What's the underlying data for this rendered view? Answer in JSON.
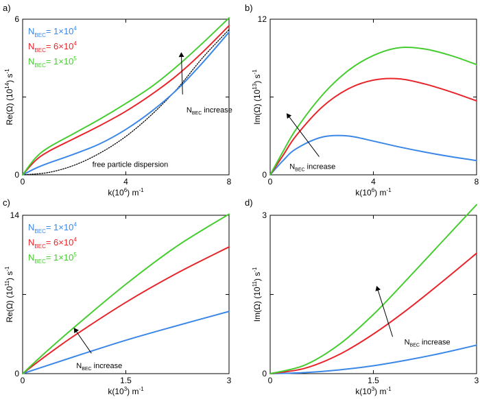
{
  "colors": {
    "blue": "#3a87e8",
    "red": "#e8242a",
    "green": "#45cc2e",
    "black": "#000000"
  },
  "chart_data": [
    {
      "id": "a",
      "panel_label": "a)",
      "type": "line",
      "ylabel_main": "Re(Ω) (10",
      "ylabel_sup": "14",
      "ylabel_tail": ") s",
      "ylabel_tail_sup": "-1",
      "xlabel_main": "k(10",
      "xlabel_sup": "6",
      "xlabel_tail": ") m",
      "xlabel_tail_sup": "-1",
      "xlim": [
        0,
        8
      ],
      "ylim": [
        0,
        6
      ],
      "xticks": [
        0,
        4,
        8
      ],
      "xtick_labels": [
        "0",
        "4",
        "8"
      ],
      "yticks": [
        0,
        3,
        6
      ],
      "ytick_labels": [
        "0",
        "",
        "6"
      ],
      "legend": [
        {
          "sym": "N",
          "sub": "BEC",
          "rest": "= 1×10",
          "sup": "4",
          "color": "blue"
        },
        {
          "sym": "N",
          "sub": "BEC",
          "rest": "= 6×10",
          "sup": "4",
          "color": "red"
        },
        {
          "sym": "N",
          "sub": "BEC",
          "rest": "= 1×10",
          "sup": "5",
          "color": "green"
        }
      ],
      "annotations": [
        {
          "sym": "N",
          "sub": "BEC",
          "rest": " increase",
          "ax": 6.2,
          "ay": 3.1,
          "hx": 6.15,
          "hy": 4.7,
          "tx": 6.35,
          "ty": 2.4
        },
        {
          "plain": "free particle dispersion",
          "tx": 2.7,
          "ty": 0.3
        }
      ],
      "series": [
        {
          "name": "free particle",
          "color": "black",
          "dashed": true,
          "x": [
            0,
            1,
            2,
            3,
            4,
            5,
            6,
            7,
            8
          ],
          "y": [
            0,
            0.09,
            0.37,
            0.84,
            1.48,
            2.32,
            3.33,
            4.54,
            5.6
          ]
        },
        {
          "name": "N_BEC=1x10^4",
          "color": "blue",
          "x": [
            0,
            0.5,
            1,
            2,
            3,
            4,
            5,
            6,
            7,
            8
          ],
          "y": [
            0,
            0.25,
            0.45,
            0.8,
            1.2,
            1.75,
            2.45,
            3.3,
            4.35,
            5.5
          ]
        },
        {
          "name": "N_BEC=6x10^4",
          "color": "red",
          "x": [
            0,
            0.5,
            1,
            2,
            3,
            4,
            5,
            6,
            7,
            8
          ],
          "y": [
            0,
            0.55,
            0.9,
            1.4,
            1.9,
            2.45,
            3.1,
            3.85,
            4.75,
            5.75
          ]
        },
        {
          "name": "N_BEC=1x10^5",
          "color": "green",
          "x": [
            0,
            0.5,
            1,
            2,
            3,
            4,
            5,
            6,
            7,
            8
          ],
          "y": [
            0,
            0.65,
            1.05,
            1.6,
            2.15,
            2.75,
            3.4,
            4.2,
            5.1,
            6.05
          ]
        }
      ]
    },
    {
      "id": "b",
      "panel_label": "b)",
      "type": "line",
      "ylabel_main": "Im(Ω) (10",
      "ylabel_sup": "13",
      "ylabel_tail": ") s",
      "ylabel_tail_sup": "-1",
      "xlabel_main": "k(10",
      "xlabel_sup": "6",
      "xlabel_tail": ") m",
      "xlabel_tail_sup": "-1",
      "xlim": [
        0,
        8
      ],
      "ylim": [
        0,
        12
      ],
      "xticks": [
        0,
        4,
        8
      ],
      "xtick_labels": [
        "0",
        "4",
        "8"
      ],
      "yticks": [
        0,
        6,
        12
      ],
      "ytick_labels": [
        "0",
        "",
        "12"
      ],
      "legend": [],
      "annotations": [
        {
          "sym": "N",
          "sub": "BEC",
          "rest": " increase",
          "ax": 1.9,
          "ay": 1.4,
          "hx": 0.65,
          "hy": 4.7,
          "tx": 0.75,
          "ty": 0.45
        }
      ],
      "series": [
        {
          "name": "N_BEC=1x10^4",
          "color": "blue",
          "x": [
            0,
            0.5,
            1,
            2,
            3,
            4,
            5,
            6,
            7,
            8
          ],
          "y": [
            0,
            1.1,
            2.0,
            2.9,
            3.0,
            2.6,
            2.15,
            1.75,
            1.4,
            1.1
          ]
        },
        {
          "name": "N_BEC=6x10^4",
          "color": "red",
          "x": [
            0,
            0.5,
            1,
            2,
            3,
            4,
            5,
            6,
            7,
            8
          ],
          "y": [
            0,
            1.5,
            3.0,
            5.2,
            6.6,
            7.3,
            7.4,
            7.0,
            6.4,
            5.7
          ]
        },
        {
          "name": "N_BEC=1x10^5",
          "color": "green",
          "x": [
            0,
            0.5,
            1,
            2,
            3,
            4,
            5,
            6,
            7,
            8
          ],
          "y": [
            0,
            1.8,
            3.5,
            6.1,
            8.0,
            9.2,
            9.8,
            9.7,
            9.2,
            8.5
          ]
        }
      ]
    },
    {
      "id": "c",
      "panel_label": "c)",
      "type": "line",
      "ylabel_main": "Re(Ω) (10",
      "ylabel_sup": "11",
      "ylabel_tail": ") s",
      "ylabel_tail_sup": "-1",
      "xlabel_main": "k(10",
      "xlabel_sup": "3",
      "xlabel_tail": ") m",
      "xlabel_tail_sup": "-1",
      "xlim": [
        0,
        3
      ],
      "ylim": [
        0,
        14
      ],
      "xticks": [
        0,
        1.5,
        3
      ],
      "xtick_labels": [
        "0",
        "1.5",
        "3"
      ],
      "yticks": [
        0,
        7,
        14
      ],
      "ytick_labels": [
        "0",
        "",
        "14"
      ],
      "legend": [
        {
          "sym": "N",
          "sub": "BEC",
          "rest": "= 1×10",
          "sup": "4",
          "color": "blue"
        },
        {
          "sym": "N",
          "sub": "BEC",
          "rest": "= 6×10",
          "sup": "4",
          "color": "red"
        },
        {
          "sym": "N",
          "sub": "BEC",
          "rest": "= 1×10",
          "sup": "5",
          "color": "green"
        }
      ],
      "annotations": [
        {
          "sym": "N",
          "sub": "BEC",
          "rest": " increase",
          "ax": 1.0,
          "ay": 1.8,
          "hx": 0.75,
          "hy": 4.0,
          "tx": 0.78,
          "ty": 0.5
        }
      ],
      "series": [
        {
          "name": "N_BEC=1x10^4",
          "color": "blue",
          "x": [
            0,
            0.3,
            0.75,
            1.5,
            2.25,
            3
          ],
          "y": [
            0,
            0.6,
            1.5,
            2.95,
            4.25,
            5.5
          ]
        },
        {
          "name": "N_BEC=6x10^4",
          "color": "red",
          "x": [
            0,
            0.3,
            0.75,
            1.5,
            2.25,
            3
          ],
          "y": [
            0,
            1.4,
            3.35,
            6.3,
            8.9,
            11.2
          ]
        },
        {
          "name": "N_BEC=1x10^5",
          "color": "green",
          "x": [
            0,
            0.3,
            0.75,
            1.5,
            2.25,
            3
          ],
          "y": [
            0,
            1.7,
            4.1,
            7.9,
            11.3,
            14.1
          ]
        }
      ]
    },
    {
      "id": "d",
      "panel_label": "d)",
      "type": "line",
      "ylabel_main": "Im(Ω) (10",
      "ylabel_sup": "11",
      "ylabel_tail": ") s",
      "ylabel_tail_sup": "-1",
      "xlabel_main": "k(10",
      "xlabel_sup": "3",
      "xlabel_tail": ") m",
      "xlabel_tail_sup": "-1",
      "xlim": [
        0,
        3
      ],
      "ylim": [
        0,
        3
      ],
      "xticks": [
        0,
        1.5,
        3
      ],
      "xtick_labels": [
        "0",
        "1.5",
        "3"
      ],
      "yticks": [
        0,
        1.5,
        3
      ],
      "ytick_labels": [
        "0",
        "",
        "3"
      ],
      "legend": [],
      "annotations": [
        {
          "sym": "N",
          "sub": "BEC",
          "rest": " increase",
          "ax": 1.78,
          "ay": 0.7,
          "hx": 1.55,
          "hy": 1.65,
          "tx": 1.95,
          "ty": 0.55
        }
      ],
      "series": [
        {
          "name": "N_BEC=1x10^4",
          "color": "blue",
          "x": [
            0,
            0.5,
            1,
            1.5,
            2,
            2.5,
            3
          ],
          "y": [
            0,
            0.02,
            0.07,
            0.15,
            0.26,
            0.39,
            0.54
          ]
        },
        {
          "name": "N_BEC=6x10^4",
          "color": "red",
          "x": [
            0,
            0.5,
            1,
            1.5,
            2,
            2.5,
            3
          ],
          "y": [
            0,
            0.1,
            0.36,
            0.75,
            1.22,
            1.74,
            2.28
          ]
        },
        {
          "name": "N_BEC=1x10^5",
          "color": "green",
          "x": [
            0,
            0.5,
            1,
            1.5,
            2,
            2.5,
            3
          ],
          "y": [
            0,
            0.16,
            0.55,
            1.12,
            1.8,
            2.5,
            3.2
          ]
        }
      ]
    }
  ]
}
